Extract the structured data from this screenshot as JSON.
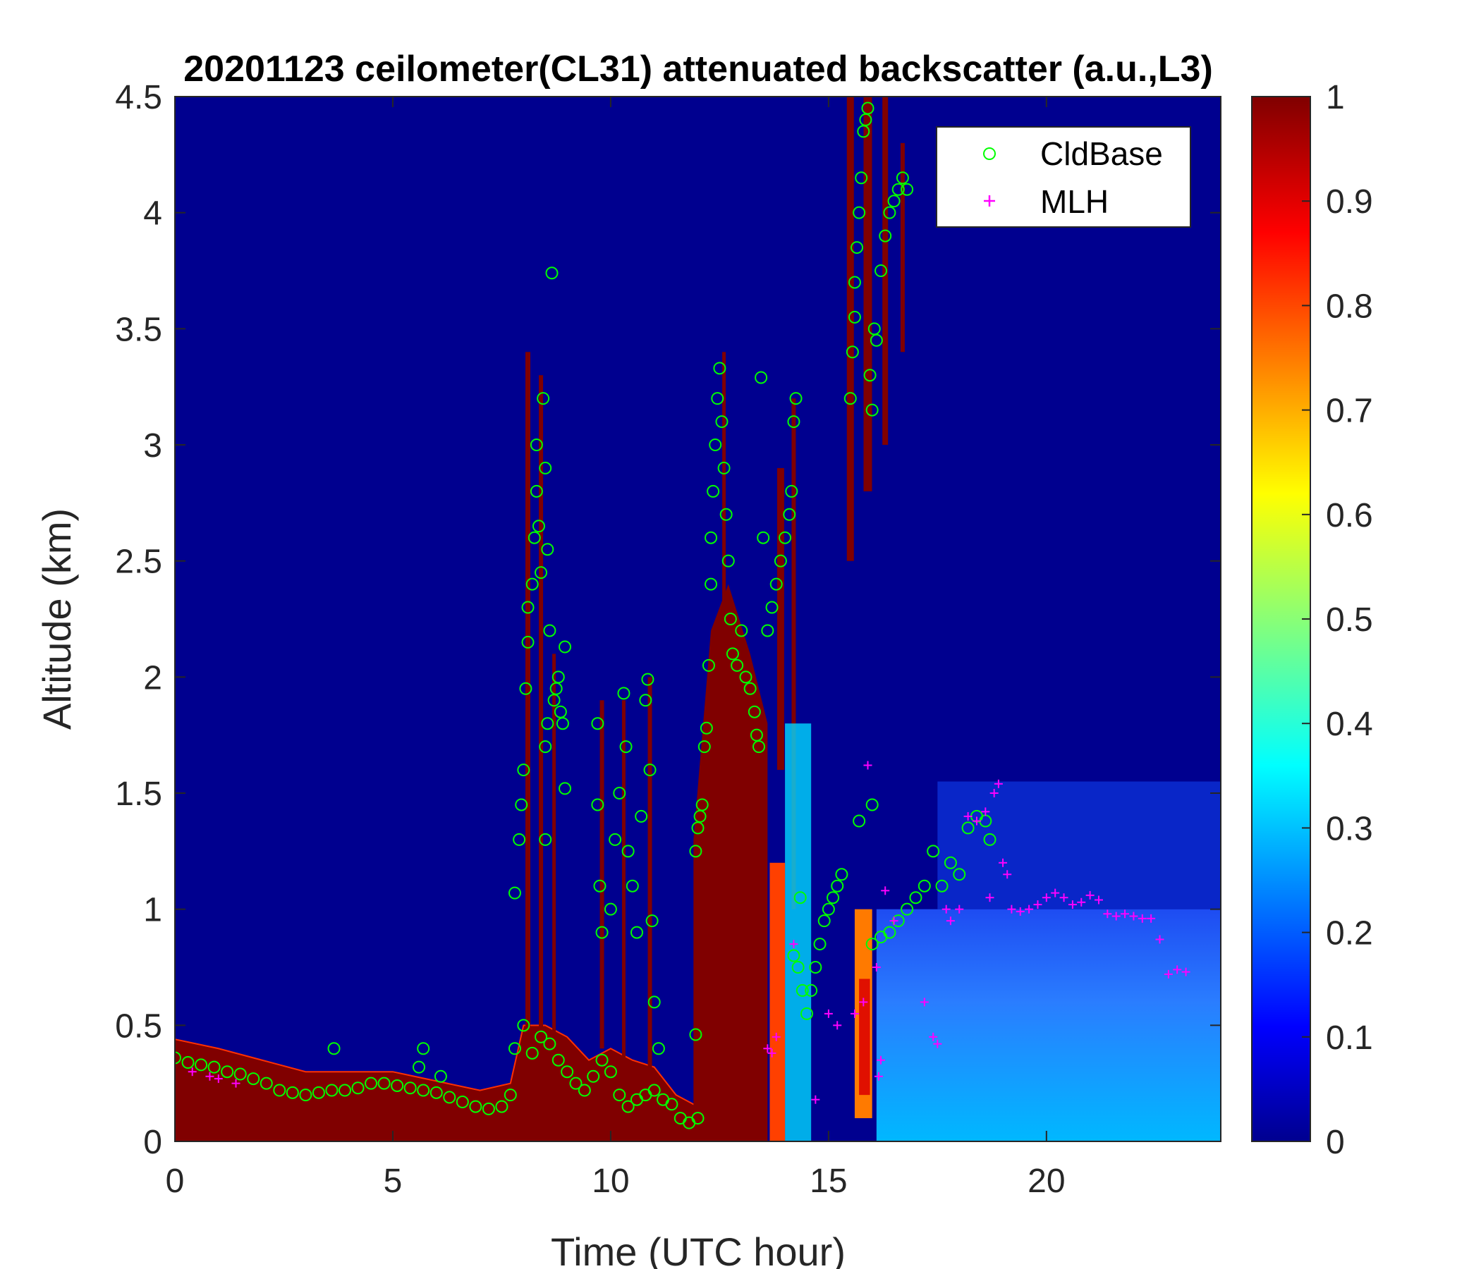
{
  "chart_data": {
    "type": "heatmap",
    "title": "20201123 ceilometer(CL31) attenuated backscatter (a.u.,L3)",
    "xlabel": "Time (UTC hour)",
    "ylabel": "Altitude (km)",
    "xlim": [
      0,
      24
    ],
    "ylim": [
      0,
      4.5
    ],
    "x_ticks": [
      "0",
      "5",
      "10",
      "15",
      "20"
    ],
    "y_ticks": [
      "0",
      "0.5",
      "1",
      "1.5",
      "2",
      "2.5",
      "3",
      "3.5",
      "4",
      "4.5"
    ],
    "colorbar": {
      "range": [
        0,
        1
      ],
      "ticks": [
        "0",
        "0.1",
        "0.2",
        "0.3",
        "0.4",
        "0.5",
        "0.6",
        "0.7",
        "0.8",
        "0.9",
        "1"
      ],
      "colormap": "jet"
    },
    "colors": {
      "background_field": "#00008f",
      "saturated": "#800000",
      "cldbase_marker": "#00ff00",
      "mlh_marker": "#ff00ff"
    },
    "legend": {
      "placement": "top-right",
      "entries": [
        "CldBase",
        "MLH"
      ]
    },
    "series": [
      {
        "name": "CldBase",
        "marker": "circle",
        "color": "#00ff00",
        "points": [
          [
            0.0,
            0.36
          ],
          [
            0.3,
            0.34
          ],
          [
            0.6,
            0.33
          ],
          [
            0.9,
            0.32
          ],
          [
            1.2,
            0.3
          ],
          [
            1.5,
            0.29
          ],
          [
            1.8,
            0.27
          ],
          [
            2.1,
            0.25
          ],
          [
            2.4,
            0.22
          ],
          [
            2.7,
            0.21
          ],
          [
            3.0,
            0.2
          ],
          [
            3.3,
            0.21
          ],
          [
            3.6,
            0.22
          ],
          [
            3.9,
            0.22
          ],
          [
            4.2,
            0.23
          ],
          [
            4.5,
            0.25
          ],
          [
            4.8,
            0.25
          ],
          [
            5.1,
            0.24
          ],
          [
            5.4,
            0.23
          ],
          [
            5.7,
            0.22
          ],
          [
            6.0,
            0.21
          ],
          [
            6.3,
            0.19
          ],
          [
            6.6,
            0.17
          ],
          [
            6.9,
            0.15
          ],
          [
            7.2,
            0.14
          ],
          [
            7.5,
            0.15
          ],
          [
            7.7,
            0.2
          ],
          [
            3.65,
            0.4
          ],
          [
            5.6,
            0.32
          ],
          [
            5.7,
            0.4
          ],
          [
            6.1,
            0.28
          ],
          [
            7.8,
            1.07
          ],
          [
            7.9,
            1.3
          ],
          [
            7.95,
            1.45
          ],
          [
            8.0,
            1.6
          ],
          [
            8.05,
            1.95
          ],
          [
            8.1,
            2.15
          ],
          [
            8.1,
            2.3
          ],
          [
            8.2,
            2.4
          ],
          [
            8.25,
            2.6
          ],
          [
            8.3,
            2.8
          ],
          [
            8.3,
            3.0
          ],
          [
            8.35,
            2.65
          ],
          [
            8.4,
            2.45
          ],
          [
            8.45,
            3.2
          ],
          [
            8.5,
            2.9
          ],
          [
            8.55,
            2.55
          ],
          [
            8.6,
            2.2
          ],
          [
            8.55,
            1.8
          ],
          [
            8.5,
            1.7
          ],
          [
            8.5,
            1.3
          ],
          [
            8.7,
            1.9
          ],
          [
            8.75,
            1.95
          ],
          [
            8.8,
            2.0
          ],
          [
            8.85,
            1.85
          ],
          [
            8.9,
            1.8
          ],
          [
            8.95,
            2.13
          ],
          [
            8.95,
            1.52
          ],
          [
            8.65,
            3.74
          ],
          [
            7.8,
            0.4
          ],
          [
            8.0,
            0.5
          ],
          [
            8.2,
            0.38
          ],
          [
            8.4,
            0.45
          ],
          [
            8.6,
            0.42
          ],
          [
            8.8,
            0.35
          ],
          [
            9.0,
            0.3
          ],
          [
            9.2,
            0.25
          ],
          [
            9.4,
            0.22
          ],
          [
            9.6,
            0.28
          ],
          [
            9.8,
            0.35
          ],
          [
            10.0,
            0.3
          ],
          [
            10.2,
            0.2
          ],
          [
            10.4,
            0.15
          ],
          [
            10.6,
            0.18
          ],
          [
            10.8,
            0.2
          ],
          [
            11.0,
            0.22
          ],
          [
            11.2,
            0.18
          ],
          [
            11.4,
            0.16
          ],
          [
            11.6,
            0.1
          ],
          [
            11.8,
            0.08
          ],
          [
            12.0,
            0.1
          ],
          [
            9.7,
            1.8
          ],
          [
            9.7,
            1.45
          ],
          [
            9.75,
            1.1
          ],
          [
            9.8,
            0.9
          ],
          [
            10.0,
            1.0
          ],
          [
            10.1,
            1.3
          ],
          [
            10.2,
            1.5
          ],
          [
            10.3,
            1.93
          ],
          [
            10.35,
            1.7
          ],
          [
            10.4,
            1.25
          ],
          [
            10.5,
            1.1
          ],
          [
            10.6,
            0.9
          ],
          [
            10.7,
            1.4
          ],
          [
            10.8,
            1.9
          ],
          [
            10.85,
            1.99
          ],
          [
            10.9,
            1.6
          ],
          [
            10.95,
            0.95
          ],
          [
            11.0,
            0.6
          ],
          [
            11.1,
            0.4
          ],
          [
            11.95,
            0.46
          ],
          [
            11.95,
            1.25
          ],
          [
            12.0,
            1.35
          ],
          [
            12.05,
            1.4
          ],
          [
            12.1,
            1.45
          ],
          [
            12.15,
            1.7
          ],
          [
            12.2,
            1.78
          ],
          [
            12.25,
            2.05
          ],
          [
            12.3,
            2.4
          ],
          [
            12.3,
            2.6
          ],
          [
            12.35,
            2.8
          ],
          [
            12.4,
            3.0
          ],
          [
            12.45,
            3.2
          ],
          [
            12.5,
            3.33
          ],
          [
            12.55,
            3.1
          ],
          [
            12.6,
            2.9
          ],
          [
            12.65,
            2.7
          ],
          [
            12.7,
            2.5
          ],
          [
            12.75,
            2.25
          ],
          [
            12.8,
            2.1
          ],
          [
            12.9,
            2.05
          ],
          [
            13.0,
            2.2
          ],
          [
            13.1,
            2.0
          ],
          [
            13.2,
            1.95
          ],
          [
            13.3,
            1.85
          ],
          [
            13.35,
            1.75
          ],
          [
            13.4,
            1.7
          ],
          [
            13.45,
            3.29
          ],
          [
            13.5,
            2.6
          ],
          [
            13.6,
            2.2
          ],
          [
            13.7,
            2.3
          ],
          [
            13.8,
            2.4
          ],
          [
            13.9,
            2.5
          ],
          [
            14.0,
            2.6
          ],
          [
            14.1,
            2.7
          ],
          [
            14.15,
            2.8
          ],
          [
            14.2,
            3.1
          ],
          [
            14.25,
            3.2
          ],
          [
            14.2,
            0.8
          ],
          [
            14.3,
            0.75
          ],
          [
            14.4,
            0.65
          ],
          [
            14.5,
            0.55
          ],
          [
            14.6,
            0.65
          ],
          [
            14.7,
            0.75
          ],
          [
            14.8,
            0.85
          ],
          [
            14.9,
            0.95
          ],
          [
            15.0,
            1.0
          ],
          [
            15.1,
            1.05
          ],
          [
            15.2,
            1.1
          ],
          [
            15.3,
            1.15
          ],
          [
            14.35,
            1.05
          ],
          [
            15.5,
            3.2
          ],
          [
            15.55,
            3.4
          ],
          [
            15.6,
            3.55
          ],
          [
            15.6,
            3.7
          ],
          [
            15.65,
            3.85
          ],
          [
            15.7,
            4.0
          ],
          [
            15.75,
            4.15
          ],
          [
            15.8,
            4.35
          ],
          [
            15.85,
            4.4
          ],
          [
            15.9,
            4.45
          ],
          [
            15.95,
            3.3
          ],
          [
            16.0,
            3.15
          ],
          [
            16.05,
            3.5
          ],
          [
            16.1,
            3.45
          ],
          [
            16.2,
            3.75
          ],
          [
            16.3,
            3.9
          ],
          [
            16.4,
            4.0
          ],
          [
            16.5,
            4.05
          ],
          [
            16.6,
            4.1
          ],
          [
            16.7,
            4.15
          ],
          [
            16.8,
            4.1
          ],
          [
            15.7,
            1.38
          ],
          [
            16.0,
            1.45
          ],
          [
            16.0,
            0.85
          ],
          [
            16.2,
            0.88
          ],
          [
            16.4,
            0.9
          ],
          [
            16.6,
            0.95
          ],
          [
            16.8,
            1.0
          ],
          [
            17.0,
            1.05
          ],
          [
            17.2,
            1.1
          ],
          [
            17.4,
            1.25
          ],
          [
            17.6,
            1.1
          ],
          [
            17.8,
            1.2
          ],
          [
            18.0,
            1.15
          ],
          [
            18.2,
            1.35
          ],
          [
            18.4,
            1.4
          ],
          [
            18.6,
            1.38
          ],
          [
            18.7,
            1.3
          ]
        ]
      },
      {
        "name": "MLH",
        "marker": "plus",
        "color": "#ff00ff",
        "points": [
          [
            0.4,
            0.3
          ],
          [
            0.8,
            0.28
          ],
          [
            1.0,
            0.27
          ],
          [
            1.4,
            0.25
          ],
          [
            13.6,
            0.4
          ],
          [
            13.7,
            0.38
          ],
          [
            13.8,
            0.45
          ],
          [
            14.2,
            0.85
          ],
          [
            14.7,
            0.18
          ],
          [
            15.0,
            0.55
          ],
          [
            15.2,
            0.5
          ],
          [
            15.6,
            0.55
          ],
          [
            15.8,
            0.6
          ],
          [
            15.9,
            1.62
          ],
          [
            16.1,
            0.75
          ],
          [
            16.15,
            0.28
          ],
          [
            16.2,
            0.35
          ],
          [
            16.3,
            1.08
          ],
          [
            16.5,
            0.95
          ],
          [
            17.2,
            0.6
          ],
          [
            17.4,
            0.45
          ],
          [
            17.5,
            0.42
          ],
          [
            17.7,
            1.0
          ],
          [
            17.8,
            0.95
          ],
          [
            18.0,
            1.0
          ],
          [
            18.2,
            1.4
          ],
          [
            18.4,
            1.38
          ],
          [
            18.6,
            1.42
          ],
          [
            18.7,
            1.05
          ],
          [
            18.8,
            1.5
          ],
          [
            18.9,
            1.54
          ],
          [
            19.0,
            1.2
          ],
          [
            19.1,
            1.15
          ],
          [
            19.2,
            1.0
          ],
          [
            19.4,
            0.99
          ],
          [
            19.6,
            1.0
          ],
          [
            19.8,
            1.02
          ],
          [
            20.0,
            1.05
          ],
          [
            20.2,
            1.07
          ],
          [
            20.4,
            1.05
          ],
          [
            20.6,
            1.02
          ],
          [
            20.8,
            1.03
          ],
          [
            21.0,
            1.06
          ],
          [
            21.2,
            1.04
          ],
          [
            21.4,
            0.98
          ],
          [
            21.6,
            0.97
          ],
          [
            21.8,
            0.98
          ],
          [
            22.0,
            0.97
          ],
          [
            22.2,
            0.96
          ],
          [
            22.4,
            0.96
          ],
          [
            22.6,
            0.87
          ],
          [
            22.8,
            0.72
          ],
          [
            23.0,
            0.74
          ],
          [
            23.2,
            0.73
          ]
        ]
      }
    ]
  }
}
